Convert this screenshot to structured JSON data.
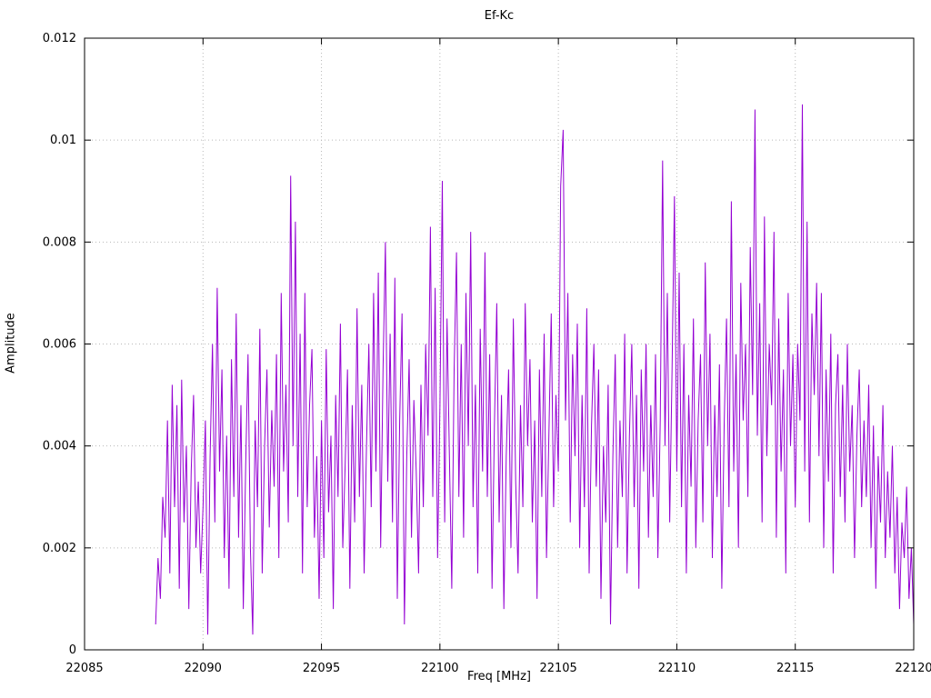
{
  "chart_data": {
    "type": "line",
    "title": "Ef-Kc",
    "xlabel": "Freq [MHz]",
    "ylabel": "Amplitude",
    "xlim": [
      22085,
      22120
    ],
    "ylim": [
      0,
      0.012
    ],
    "grid": true,
    "legend": "none",
    "line_color": "#9400d3",
    "x_ticks": [
      22085,
      22090,
      22095,
      22100,
      22105,
      22110,
      22115,
      22120
    ],
    "x_tick_labels": [
      "22085",
      "22090",
      "22095",
      "22100",
      "22105",
      "22110",
      "22115",
      "22120"
    ],
    "y_ticks": [
      0,
      0.002,
      0.004,
      0.006,
      0.008,
      0.01,
      0.012
    ],
    "y_tick_labels": [
      "0",
      "0.002",
      "0.004",
      "0.006",
      "0.008",
      "0.01",
      "0.012"
    ],
    "series": [
      {
        "name": "Ef-Kc",
        "x_start": 22088.0,
        "x_step": 0.1,
        "amplitude_scale": 0.0001,
        "values": [
          5,
          18,
          10,
          30,
          22,
          45,
          15,
          52,
          28,
          48,
          12,
          53,
          25,
          40,
          8,
          35,
          50,
          20,
          33,
          15,
          28,
          45,
          3,
          38,
          60,
          25,
          71,
          35,
          55,
          18,
          42,
          12,
          57,
          30,
          66,
          22,
          48,
          8,
          36,
          58,
          20,
          3,
          45,
          28,
          63,
          15,
          40,
          55,
          24,
          47,
          32,
          58,
          18,
          70,
          35,
          52,
          25,
          93,
          40,
          84,
          30,
          62,
          15,
          70,
          28,
          48,
          59,
          22,
          38,
          10,
          45,
          18,
          59,
          27,
          42,
          8,
          50,
          30,
          64,
          20,
          36,
          55,
          12,
          48,
          25,
          67,
          30,
          52,
          15,
          40,
          60,
          28,
          70,
          35,
          74,
          20,
          55,
          80,
          33,
          62,
          25,
          73,
          10,
          45,
          66,
          5,
          38,
          57,
          22,
          49,
          35,
          15,
          52,
          28,
          60,
          42,
          83,
          30,
          71,
          18,
          48,
          92,
          25,
          65,
          38,
          12,
          55,
          78,
          30,
          60,
          22,
          70,
          40,
          82,
          28,
          52,
          15,
          63,
          35,
          78,
          30,
          58,
          12,
          44,
          68,
          25,
          50,
          8,
          38,
          55,
          20,
          65,
          33,
          15,
          48,
          28,
          68,
          40,
          57,
          25,
          45,
          10,
          55,
          30,
          62,
          18,
          42,
          66,
          28,
          50,
          35,
          91,
          102,
          45,
          70,
          25,
          58,
          38,
          64,
          20,
          50,
          28,
          67,
          15,
          44,
          60,
          32,
          55,
          10,
          40,
          25,
          52,
          5,
          38,
          58,
          20,
          45,
          30,
          62,
          15,
          42,
          60,
          28,
          50,
          12,
          55,
          35,
          60,
          22,
          48,
          30,
          58,
          18,
          45,
          96,
          40,
          70,
          25,
          55,
          89,
          35,
          74,
          28,
          60,
          15,
          50,
          32,
          65,
          20,
          45,
          58,
          25,
          76,
          40,
          62,
          18,
          48,
          30,
          56,
          12,
          44,
          65,
          28,
          88,
          35,
          58,
          20,
          72,
          45,
          60,
          30,
          79,
          50,
          106,
          42,
          68,
          25,
          85,
          38,
          60,
          48,
          82,
          22,
          65,
          35,
          55,
          15,
          70,
          40,
          58,
          28,
          60,
          45,
          107,
          35,
          84,
          25,
          66,
          50,
          72,
          38,
          70,
          20,
          55,
          33,
          62,
          15,
          48,
          58,
          30,
          52,
          25,
          60,
          35,
          48,
          18,
          42,
          55,
          28,
          45,
          30,
          52,
          20,
          44,
          12,
          38,
          25,
          48,
          18,
          35,
          22,
          40,
          15,
          30,
          8,
          25,
          18,
          32,
          10,
          20,
          5
        ]
      }
    ]
  }
}
